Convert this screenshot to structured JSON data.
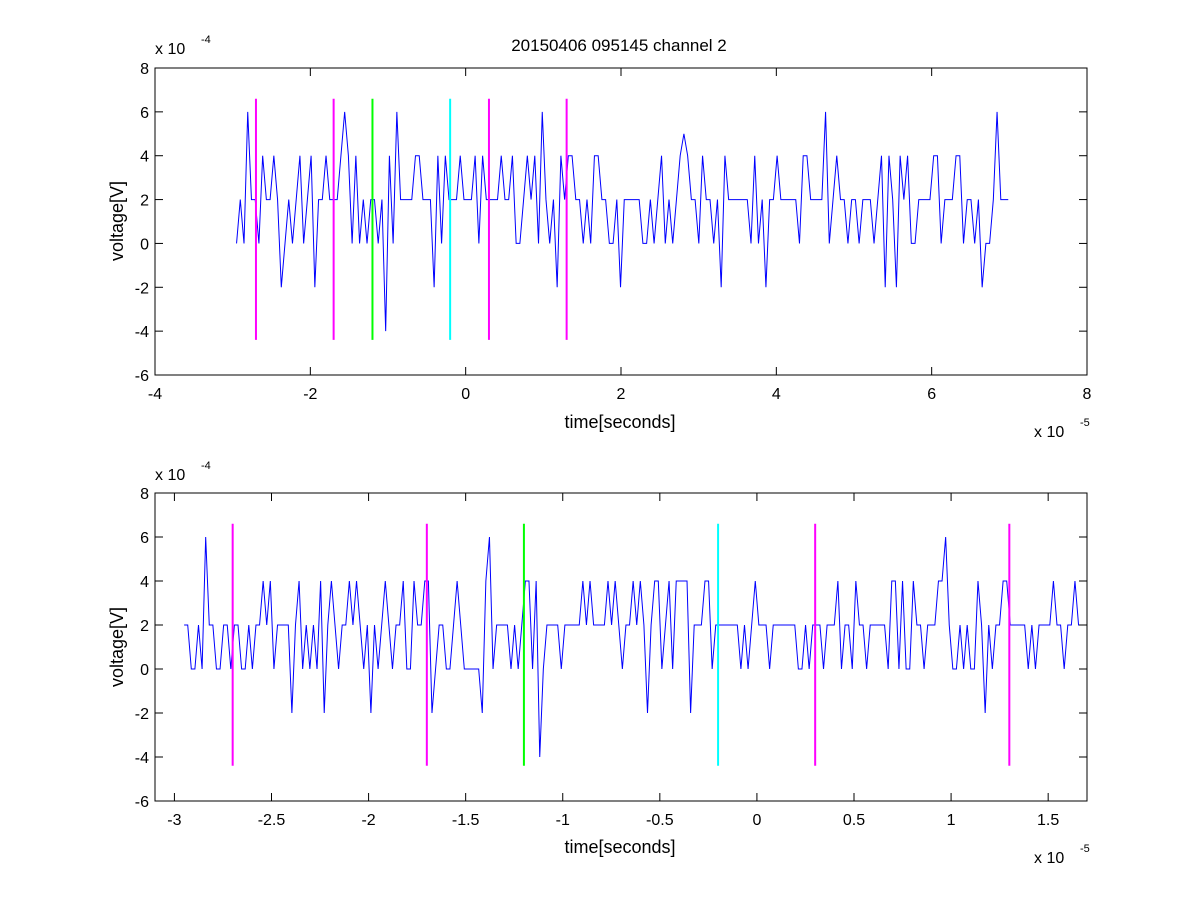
{
  "figure": {
    "title": "20150406 095145 channel 2"
  },
  "chart_data": [
    {
      "type": "line",
      "title": "20150406 095145 channel 2",
      "xlabel": "time[seconds]",
      "ylabel": "voltage[V]",
      "x_exponent_label": "x 10",
      "x_exponent": "-5",
      "y_exponent_label": "x 10",
      "y_exponent": "-4",
      "xlim": [
        -4,
        8
      ],
      "ylim": [
        -6,
        8
      ],
      "xticks": [
        -4,
        -2,
        0,
        2,
        4,
        6,
        8
      ],
      "xtick_labels": [
        "-4",
        "-2",
        "0",
        "2",
        "4",
        "6",
        "8"
      ],
      "yticks": [
        -6,
        -4,
        -2,
        0,
        2,
        4,
        6,
        8
      ],
      "ytick_labels": [
        "-6",
        "-4",
        "-2",
        "0",
        "2",
        "4",
        "6",
        "8"
      ],
      "grid": false,
      "signal": {
        "color": "#0000ff",
        "x_range": [
          -2.95,
          7.0
        ],
        "levels": [
          -2,
          0,
          2,
          4,
          6
        ],
        "baseline": 2,
        "spikes": [
          {
            "x": -2.8,
            "y": 6
          },
          {
            "x": -1.55,
            "y": 6
          },
          {
            "x": -0.9,
            "y": 6
          },
          {
            "x": 1.0,
            "y": 6
          },
          {
            "x": 2.8,
            "y": 5
          },
          {
            "x": 4.65,
            "y": 6
          },
          {
            "x": 6.85,
            "y": 6
          },
          {
            "x": -2.35,
            "y": -2
          },
          {
            "x": -1.95,
            "y": -2
          },
          {
            "x": -1.05,
            "y": -4
          },
          {
            "x": -0.4,
            "y": -2
          },
          {
            "x": 1.2,
            "y": -2
          },
          {
            "x": 2.0,
            "y": -2
          },
          {
            "x": 3.3,
            "y": -2
          },
          {
            "x": 3.85,
            "y": -2
          },
          {
            "x": 5.4,
            "y": -2
          },
          {
            "x": 5.55,
            "y": -2
          },
          {
            "x": 6.65,
            "y": -2
          }
        ]
      },
      "markers": [
        {
          "x": -2.7,
          "color": "#ff00ff"
        },
        {
          "x": -1.7,
          "color": "#ff00ff"
        },
        {
          "x": -1.2,
          "color": "#00ff00"
        },
        {
          "x": -0.2,
          "color": "#00ffff"
        },
        {
          "x": 0.3,
          "color": "#ff00ff"
        },
        {
          "x": 1.3,
          "color": "#ff00ff"
        }
      ],
      "marker_y_range": [
        -4.4,
        6.6
      ]
    },
    {
      "type": "line",
      "title": "",
      "xlabel": "time[seconds]",
      "ylabel": "voltage[V]",
      "x_exponent_label": "x 10",
      "x_exponent": "-5",
      "y_exponent_label": "x 10",
      "y_exponent": "-4",
      "xlim": [
        -3.1,
        1.7
      ],
      "ylim": [
        -6,
        8
      ],
      "xticks": [
        -3,
        -2.5,
        -2,
        -1.5,
        -1,
        -0.5,
        0,
        0.5,
        1,
        1.5
      ],
      "xtick_labels": [
        "-3",
        "-2.5",
        "-2",
        "-1.5",
        "-1",
        "-0.5",
        "0",
        "0.5",
        "1",
        "1.5"
      ],
      "yticks": [
        -6,
        -4,
        -2,
        0,
        2,
        4,
        6,
        8
      ],
      "ytick_labels": [
        "-6",
        "-4",
        "-2",
        "0",
        "2",
        "4",
        "6",
        "8"
      ],
      "grid": false,
      "signal": {
        "color": "#0000ff",
        "x_range": [
          -2.95,
          1.7
        ],
        "levels": [
          -2,
          0,
          2,
          4,
          6
        ],
        "baseline": 2,
        "spikes": [
          {
            "x": -2.83,
            "y": 6
          },
          {
            "x": -1.37,
            "y": 6
          },
          {
            "x": -1.13,
            "y": 4
          },
          {
            "x": 0.97,
            "y": 6
          },
          {
            "x": -2.39,
            "y": -2
          },
          {
            "x": -2.22,
            "y": -2
          },
          {
            "x": -1.98,
            "y": -2
          },
          {
            "x": -1.68,
            "y": -2
          },
          {
            "x": -1.42,
            "y": -2
          },
          {
            "x": -1.12,
            "y": -4
          },
          {
            "x": -0.57,
            "y": -2
          },
          {
            "x": -0.35,
            "y": -2
          },
          {
            "x": 1.17,
            "y": -2
          }
        ]
      },
      "markers": [
        {
          "x": -2.7,
          "color": "#ff00ff"
        },
        {
          "x": -1.7,
          "color": "#ff00ff"
        },
        {
          "x": -1.2,
          "color": "#00ff00"
        },
        {
          "x": -0.2,
          "color": "#00ffff"
        },
        {
          "x": 0.3,
          "color": "#ff00ff"
        },
        {
          "x": 1.3,
          "color": "#ff00ff"
        }
      ],
      "marker_y_range": [
        -4.4,
        6.6
      ]
    }
  ]
}
